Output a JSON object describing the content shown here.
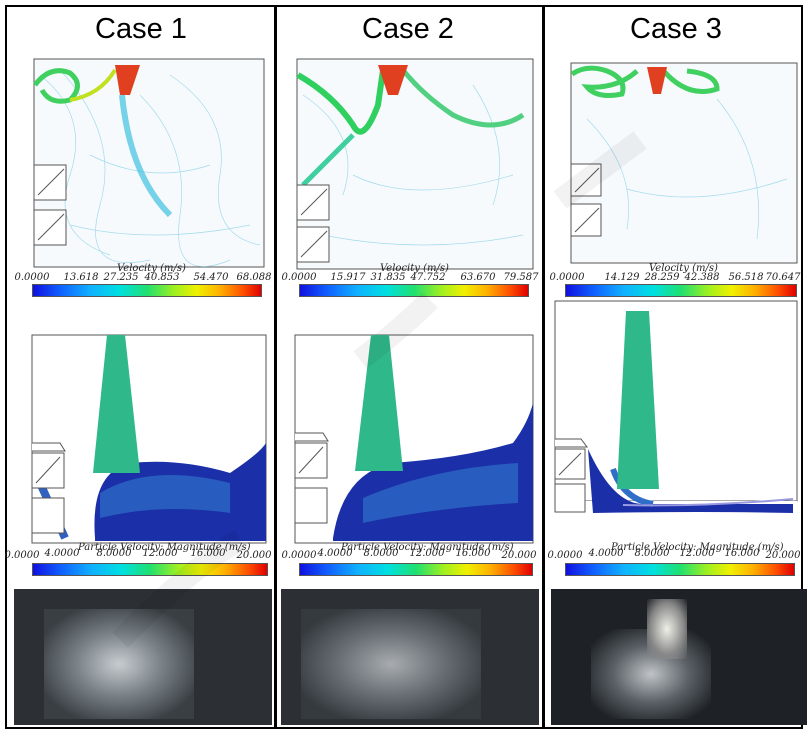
{
  "cases": [
    {
      "title": "Case 1",
      "velocity_bar": {
        "title": "Velocity (m/s)",
        "ticks": [
          "0.0000",
          "13.618",
          "27.235",
          "40.853",
          "54.470",
          "68.088"
        ]
      },
      "particle_bar": {
        "title": "Particle Velocity: Magnitude (m/s)",
        "ticks": [
          "0.0000",
          "4.0000",
          "8.0000",
          "12.000",
          "16.000",
          "20.000"
        ]
      }
    },
    {
      "title": "Case 2",
      "velocity_bar": {
        "title": "Velocity (m/s)",
        "ticks": [
          "0.0000",
          "15.917",
          "31.835",
          "47.752",
          "63.670",
          "79.587"
        ]
      },
      "particle_bar": {
        "title": "Particle Velocity: Magnitude (m/s)",
        "ticks": [
          "0.0000",
          "4.0000",
          "8.0000",
          "12.000",
          "16.000",
          "20.000"
        ]
      }
    },
    {
      "title": "Case 3",
      "velocity_bar": {
        "title": "Velocity (m/s)",
        "ticks": [
          "0.0000",
          "14.129",
          "28.259",
          "42.388",
          "56.518",
          "70.647"
        ]
      },
      "particle_bar": {
        "title": "Particle Velocity: Magnitude (m/s)",
        "ticks": [
          "0.0000",
          "4.0000",
          "8.0000",
          "12.000",
          "16.000",
          "20.000"
        ]
      }
    }
  ],
  "colors": {
    "frame": "#000000",
    "particle_bulk": "#1a2fa8",
    "particle_stream": "#2fb88a",
    "vector_field": "#7fd0e8"
  }
}
